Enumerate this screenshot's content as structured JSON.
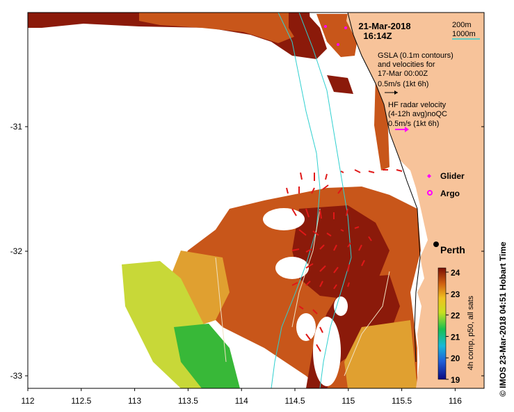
{
  "map": {
    "date": "21-Mar-2018",
    "time": "16:14Z",
    "contour_legend": {
      "shallow": "200m",
      "deep": "1000m"
    },
    "gsla_note": [
      "GSLA (0.1m contours)",
      "and velocities for",
      "17-Mar 00:00Z",
      "0.5m/s (1kt 6h)"
    ],
    "hf_note": [
      "HF radar velocity",
      "(4-12h avg)noQC",
      "0.5m/s (1kt 6h)"
    ],
    "glider_label": "Glider",
    "argo_label": "Argo",
    "city_label": "Perth",
    "credit": "© IMOS 23-Mar-2018 04:51 Hobart Time",
    "x_ticks": [
      "112",
      "112.5",
      "113",
      "113.5",
      "114",
      "114.5",
      "115",
      "115.5",
      "116"
    ],
    "y_ticks": [
      "-31",
      "-32",
      "-33"
    ]
  },
  "colorbar": {
    "label": "4h comp, p50, all sats",
    "ticks": [
      "24",
      "23",
      "22",
      "21",
      "20",
      "19"
    ],
    "stops": [
      "#0a0a80",
      "#1f5fd8",
      "#18b8d8",
      "#18c050",
      "#c8e020",
      "#f0c020",
      "#d06010",
      "#7a1006"
    ]
  },
  "colors": {
    "land": "#f7c39a",
    "sst_hot": "#8b1a0a",
    "sst_warm": "#c8561a",
    "sst_mid": "#e0a030",
    "sst_cool": "#c8d838",
    "sst_green": "#38b838",
    "contour_shallow": "#000000",
    "contour_deep": "#30d0d0",
    "radar_arrow": "#e01818",
    "gsla_arrow": "#000000",
    "hf_arrow": "#ff00ff",
    "gsla_contour": "#f0e0c0"
  }
}
